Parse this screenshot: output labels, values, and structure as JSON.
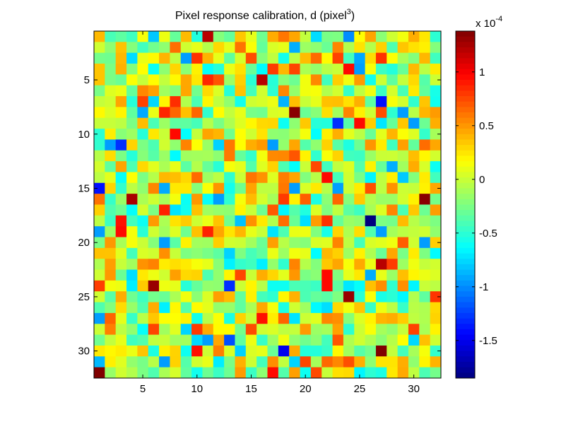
{
  "chart_data": {
    "type": "heatmap",
    "title": "Pixel response calibration, d (pixel",
    "title_superscript": "3",
    "title_suffix": ")",
    "rows": 32,
    "cols": 32,
    "xlim": [
      0.5,
      32.5
    ],
    "ylim": [
      0.5,
      32.5
    ],
    "x_ticks": [
      5,
      10,
      15,
      20,
      25,
      30
    ],
    "y_ticks": [
      5,
      10,
      15,
      20,
      25,
      30
    ],
    "x_tick_labels": [
      "5",
      "10",
      "15",
      "20",
      "25",
      "30"
    ],
    "y_tick_labels": [
      "5",
      "10",
      "15",
      "20",
      "25",
      "30"
    ],
    "colormap": "jet",
    "colorbar": {
      "range": [
        -1.85,
        1.38
      ],
      "ticks": [
        1,
        0.5,
        0,
        -0.5,
        -1,
        -1.5
      ],
      "tick_labels": [
        "1",
        "0.5",
        "0",
        "-0.5",
        "-1",
        "-1.5"
      ],
      "exponent_base": "x 10",
      "exponent_power": "-4"
    },
    "noted_values": [
      {
        "row": 1,
        "col": 11,
        "value": 1.2
      },
      {
        "row": 1,
        "col": 24,
        "value": -1.0
      },
      {
        "row": 5,
        "col": 16,
        "value": 1.2
      },
      {
        "row": 8,
        "col": 19,
        "value": 1.35
      },
      {
        "row": 9,
        "col": 23,
        "value": -1.3
      },
      {
        "row": 11,
        "col": 3,
        "value": -1.3
      },
      {
        "row": 15,
        "col": 1,
        "value": -1.4
      },
      {
        "row": 16,
        "col": 4,
        "value": 1.25
      },
      {
        "row": 16,
        "col": 31,
        "value": 1.35
      },
      {
        "row": 18,
        "col": 26,
        "value": -1.85
      },
      {
        "row": 22,
        "col": 27,
        "value": 1.2
      },
      {
        "row": 24,
        "col": 6,
        "value": 1.3
      },
      {
        "row": 24,
        "col": 13,
        "value": -1.3
      },
      {
        "row": 25,
        "col": 24,
        "value": 1.3
      },
      {
        "row": 29,
        "col": 13,
        "value": -1.2
      },
      {
        "row": 30,
        "col": 18,
        "value": -1.5
      },
      {
        "row": 30,
        "col": 27,
        "value": 1.38
      },
      {
        "row": 32,
        "col": 1,
        "value": 1.38
      },
      {
        "row": 7,
        "col": 27,
        "value": -1.4
      }
    ],
    "value_spread_sd": 0.42
  }
}
